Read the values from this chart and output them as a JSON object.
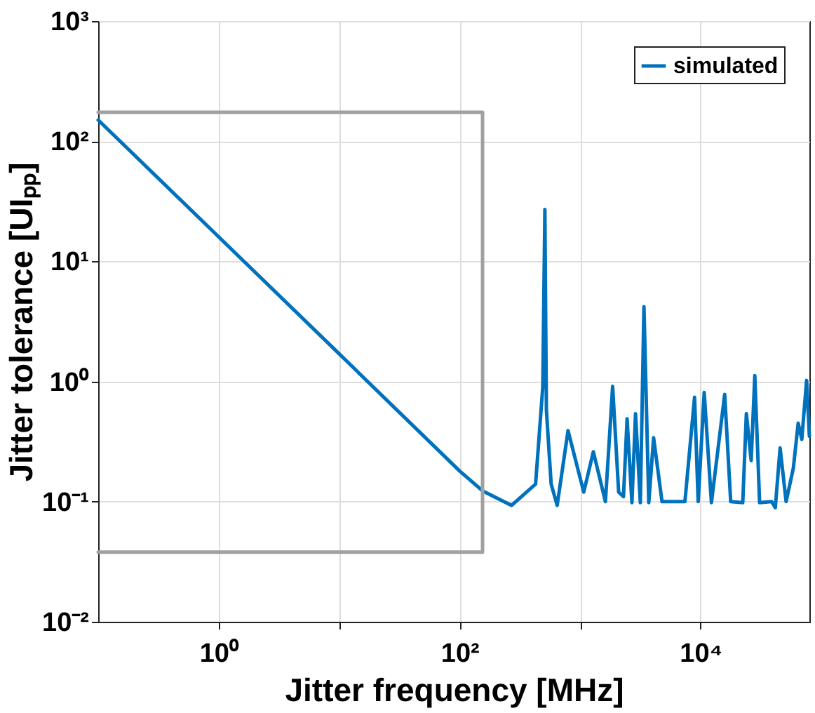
{
  "chart_data": {
    "type": "line",
    "xlabel": "Jitter frequency [MHz]",
    "ylabel": "Jitter tolerance [UIₚₚ]",
    "log": "xy",
    "grid": true,
    "legend": "top right",
    "line_style": "solid",
    "marker": "none",
    "xlim": [
      0.1,
      80000
    ],
    "ylim": [
      0.01,
      1000
    ],
    "xticks": [
      {
        "value": 1,
        "label": "10⁰"
      },
      {
        "value": 10,
        "label": null
      },
      {
        "value": 100,
        "label": "10²"
      },
      {
        "value": 1000,
        "label": null
      },
      {
        "value": 10000,
        "label": "10⁴"
      }
    ],
    "yticks": [
      {
        "value": 0.01,
        "label": "10⁻²"
      },
      {
        "value": 0.1,
        "label": "10⁻¹"
      },
      {
        "value": 1,
        "label": "10⁰"
      },
      {
        "value": 10,
        "label": "10¹"
      },
      {
        "value": 100,
        "label": "10²"
      },
      {
        "value": 1000,
        "label": "10³"
      }
    ],
    "series": [
      {
        "name": "simulated",
        "color": "#0072bd",
        "x": [
          0.1,
          1,
          10,
          100,
          155,
          270,
          427,
          490,
          510,
          525,
          575,
          645,
          794,
          1072,
          1288,
          1622,
          1862,
          2089,
          2291,
          2455,
          2692,
          2884,
          3162,
          3388,
          3715,
          4074,
          4786,
          5370,
          7413,
          8913,
          9550,
          10715,
          12303,
          15849,
          17783,
          22387,
          23988,
          26303,
          28184,
          30903,
          38905,
          41687,
          45709,
          51286,
          58884,
          64565,
          69183,
          75858,
          80000
        ],
        "values": [
          150,
          16,
          1.7,
          0.18,
          0.123,
          0.093,
          0.14,
          0.9,
          27,
          0.58,
          0.14,
          0.093,
          0.39,
          0.12,
          0.26,
          0.1,
          0.91,
          0.12,
          0.11,
          0.49,
          0.098,
          0.54,
          0.098,
          4.2,
          0.098,
          0.34,
          0.1,
          0.1,
          0.1,
          0.74,
          0.1,
          0.81,
          0.098,
          0.78,
          0.1,
          0.098,
          0.54,
          0.22,
          1.12,
          0.098,
          0.1,
          0.089,
          0.28,
          0.1,
          0.19,
          0.45,
          0.33,
          1.02,
          0.35
        ]
      },
      {
        "color": "#a0a0a0",
        "x": [
          0.1,
          155,
          155,
          0.1
        ],
        "values": [
          174,
          174,
          0.038,
          0.038
        ]
      }
    ]
  }
}
